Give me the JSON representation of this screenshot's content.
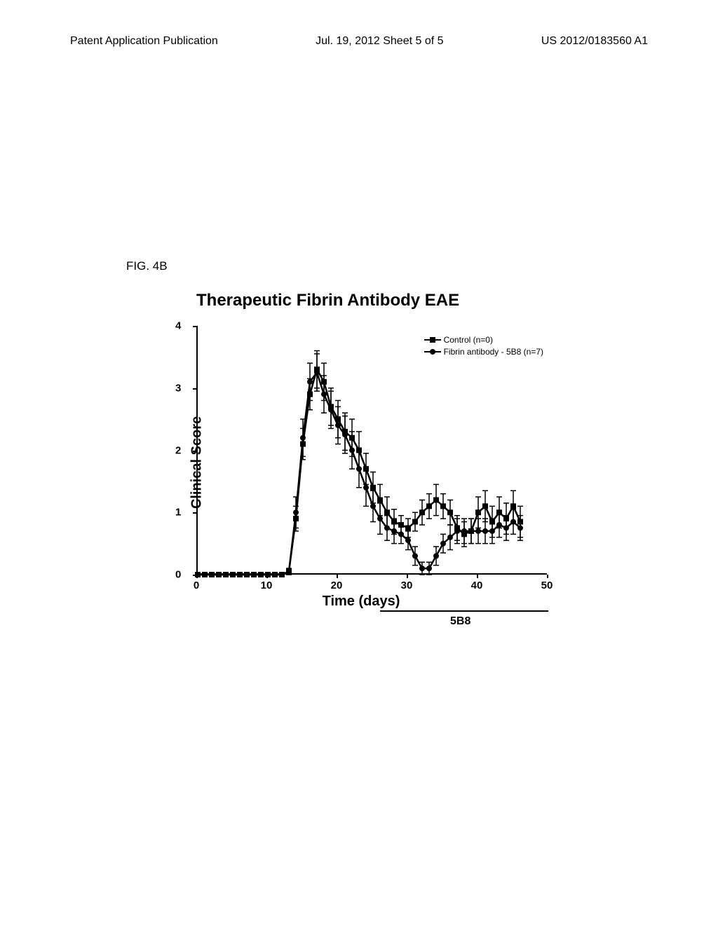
{
  "header": {
    "left": "Patent Application Publication",
    "center": "Jul. 19, 2012  Sheet 5 of 5",
    "right": "US 2012/0183560 A1"
  },
  "figure_label": "FIG. 4B",
  "chart": {
    "type": "line",
    "title": "Therapeutic Fibrin Antibody EAE",
    "title_fontsize": 24,
    "xlabel": "Time (days)",
    "ylabel": "Clinical Score",
    "label_fontsize": 20,
    "xlim": [
      0,
      50
    ],
    "ylim": [
      0,
      4
    ],
    "xtick_step": 10,
    "ytick_step": 1,
    "xticks": [
      0,
      10,
      20,
      30,
      40,
      50
    ],
    "yticks": [
      0,
      1,
      2,
      3,
      4
    ],
    "background_color": "#ffffff",
    "line_color": "#000000",
    "line_width": 2.5,
    "marker_size": 8,
    "error_bar_width": 1.5,
    "series": [
      {
        "name": "Control (n=0)",
        "marker": "square",
        "x": [
          0,
          1,
          2,
          3,
          4,
          5,
          6,
          7,
          8,
          9,
          10,
          11,
          12,
          13,
          14,
          15,
          16,
          17,
          18,
          19,
          20,
          21,
          22,
          23,
          24,
          25,
          26,
          27,
          28,
          29,
          30,
          31,
          32,
          33,
          34,
          35,
          36,
          37,
          38,
          39,
          40,
          41,
          42,
          43,
          44,
          45,
          46
        ],
        "y": [
          0,
          0,
          0,
          0,
          0,
          0,
          0,
          0,
          0,
          0,
          0,
          0,
          0,
          0.05,
          0.9,
          2.1,
          2.9,
          3.3,
          3.1,
          2.7,
          2.5,
          2.3,
          2.2,
          2.0,
          1.7,
          1.4,
          1.2,
          1.0,
          0.85,
          0.8,
          0.75,
          0.85,
          1.0,
          1.1,
          1.2,
          1.1,
          1.0,
          0.75,
          0.65,
          0.7,
          1.0,
          1.1,
          0.85,
          1.0,
          0.9,
          1.1,
          0.85
        ],
        "err": [
          0,
          0,
          0,
          0,
          0,
          0,
          0,
          0,
          0,
          0,
          0,
          0,
          0,
          0.05,
          0.2,
          0.25,
          0.25,
          0.3,
          0.3,
          0.3,
          0.3,
          0.3,
          0.3,
          0.3,
          0.25,
          0.25,
          0.25,
          0.25,
          0.2,
          0.15,
          0.15,
          0.15,
          0.2,
          0.2,
          0.25,
          0.2,
          0.2,
          0.2,
          0.2,
          0.2,
          0.25,
          0.25,
          0.25,
          0.25,
          0.25,
          0.25,
          0.25
        ]
      },
      {
        "name": "Fibrin antibody - 5B8 (n=7)",
        "marker": "circle",
        "x": [
          0,
          1,
          2,
          3,
          4,
          5,
          6,
          7,
          8,
          9,
          10,
          11,
          12,
          13,
          14,
          15,
          16,
          17,
          18,
          19,
          20,
          21,
          22,
          23,
          24,
          25,
          26,
          27,
          28,
          29,
          30,
          31,
          32,
          33,
          34,
          35,
          36,
          37,
          38,
          39,
          40,
          41,
          42,
          43,
          44,
          45,
          46
        ],
        "y": [
          0,
          0,
          0,
          0,
          0,
          0,
          0,
          0,
          0,
          0,
          0,
          0,
          0,
          0.05,
          1.0,
          2.2,
          3.1,
          3.25,
          2.9,
          2.65,
          2.4,
          2.25,
          2.0,
          1.7,
          1.4,
          1.1,
          0.9,
          0.75,
          0.7,
          0.65,
          0.55,
          0.3,
          0.1,
          0.1,
          0.3,
          0.5,
          0.6,
          0.7,
          0.7,
          0.7,
          0.7,
          0.7,
          0.7,
          0.8,
          0.75,
          0.85,
          0.75
        ],
        "err": [
          0,
          0,
          0,
          0,
          0,
          0,
          0,
          0,
          0,
          0,
          0,
          0,
          0,
          0.05,
          0.25,
          0.3,
          0.3,
          0.3,
          0.3,
          0.3,
          0.3,
          0.3,
          0.3,
          0.3,
          0.3,
          0.25,
          0.25,
          0.2,
          0.2,
          0.15,
          0.15,
          0.15,
          0.1,
          0.1,
          0.15,
          0.15,
          0.2,
          0.2,
          0.2,
          0.2,
          0.2,
          0.2,
          0.2,
          0.2,
          0.2,
          0.2,
          0.2
        ]
      }
    ],
    "treatment_bar_label": "5B8",
    "treatment_bar_start": 21,
    "treatment_bar_end": 46
  }
}
